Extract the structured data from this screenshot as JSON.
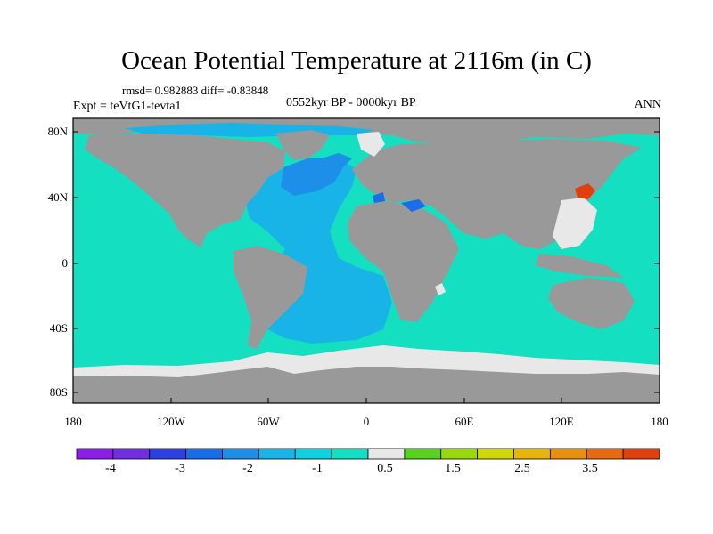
{
  "title": "Ocean Potential Temperature at 2116m (in C)",
  "stats": "rmsd= 0.982883 diff= -0.83848",
  "period": "0552kyr BP - 0000kyr BP",
  "experiment": "Expt = teVtG1-tevta1",
  "season": "ANN",
  "lat_labels": [
    "80N",
    "40N",
    "0",
    "40S",
    "80S"
  ],
  "lon_labels": [
    "180",
    "120W",
    "60W",
    "0",
    "60E",
    "120E",
    "180"
  ],
  "colorbar": {
    "labels": [
      "-4",
      "-3",
      "-2",
      "-1",
      "0.5",
      "1.5",
      "2.5",
      "3.5"
    ],
    "colors": [
      "#8a1fe6",
      "#6f2ee0",
      "#2d3fe0",
      "#1a6de8",
      "#1e8fe8",
      "#18b4e8",
      "#10cfe0",
      "#14dfc0",
      "#e8e8e8",
      "#58d21e",
      "#9ad80e",
      "#cfd80a",
      "#e6b40a",
      "#e8900c",
      "#e86a10",
      "#e0400e"
    ]
  },
  "map_colors": {
    "land": "#999999",
    "ocean_default": "#14dfc0",
    "atlantic": "#18b4e8",
    "north_atlantic": "#1e8fe8",
    "near_zero": "#e8e8e8",
    "warm": "#e0400e"
  }
}
